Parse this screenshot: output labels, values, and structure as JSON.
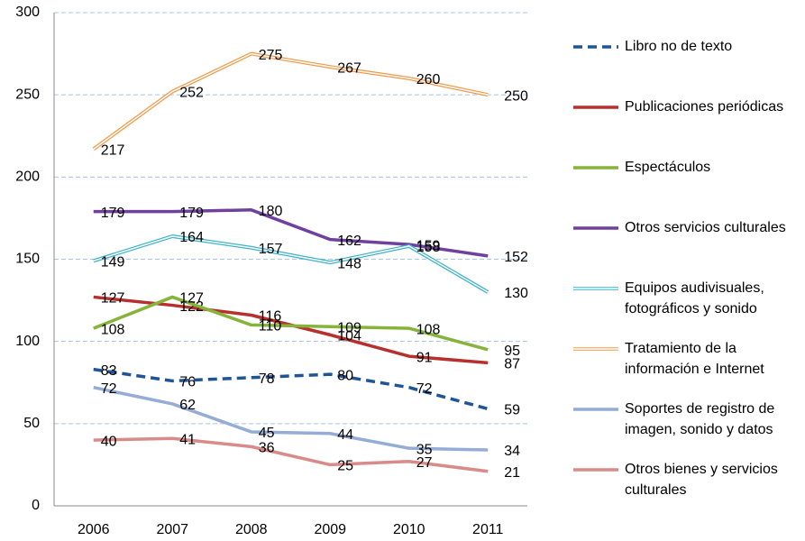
{
  "chart_data": {
    "type": "line",
    "categories": [
      "2006",
      "2007",
      "2008",
      "2009",
      "2010",
      "2011"
    ],
    "ylim": [
      0,
      300
    ],
    "yticks": [
      0,
      50,
      100,
      150,
      200,
      250,
      300
    ],
    "grid": true,
    "legend": "right",
    "series": [
      {
        "name": "Libro no de texto",
        "color": "#1f5596",
        "line_style": "dashed",
        "values": [
          83,
          76,
          78,
          80,
          72,
          59
        ]
      },
      {
        "name": "Publicaciones periódicas",
        "color": "#b8302d",
        "line_style": "solid",
        "values": [
          127,
          122,
          116,
          104,
          91,
          87
        ]
      },
      {
        "name": "Espectáculos",
        "color": "#86b33a",
        "line_style": "solid",
        "values": [
          108,
          127,
          110,
          109,
          108,
          95
        ]
      },
      {
        "name": "Otros servicios culturales",
        "color": "#7040a0",
        "line_style": "solid",
        "values": [
          179,
          179,
          180,
          162,
          159,
          152
        ]
      },
      {
        "name": "Equipos audivisuales, fotográficos y sonido",
        "color": "#3fb3c8",
        "line_style": "double",
        "values": [
          149,
          164,
          157,
          148,
          158,
          130
        ]
      },
      {
        "name": "Tratamiento de la información e Internet",
        "color": "#f29a4a",
        "line_style": "double",
        "values": [
          217,
          252,
          275,
          267,
          260,
          250
        ]
      },
      {
        "name": "Soportes de registro de imagen, sonido y datos",
        "color": "#94acd6",
        "line_style": "solid",
        "values": [
          72,
          62,
          45,
          44,
          35,
          34
        ]
      },
      {
        "name": "Otros bienes y servicios culturales",
        "color": "#d98b89",
        "line_style": "solid",
        "values": [
          40,
          41,
          36,
          25,
          27,
          21
        ]
      }
    ]
  }
}
